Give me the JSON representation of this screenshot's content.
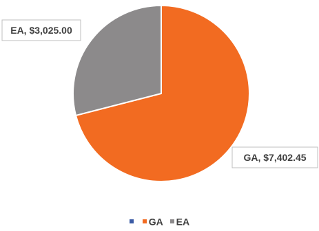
{
  "chart_data": {
    "type": "pie",
    "title": "",
    "categories": [
      "",
      "GA",
      "EA"
    ],
    "values": [
      0,
      7402.45,
      3025.0
    ],
    "colors": [
      "#3b5ba5",
      "#f26b21",
      "#8c8a8b"
    ],
    "data_labels": [
      "",
      "GA, $7,402.45",
      "EA, $3,025.00"
    ],
    "legend": {
      "placement": "bottom",
      "entries": [
        {
          "label": "",
          "color": "#3b5ba5"
        },
        {
          "label": "GA",
          "color": "#f26b21"
        },
        {
          "label": "EA",
          "color": "#8c8a8b"
        }
      ]
    },
    "start_angle_deg": 0,
    "direction": "clockwise",
    "slice_border_color": "#ffffff"
  }
}
